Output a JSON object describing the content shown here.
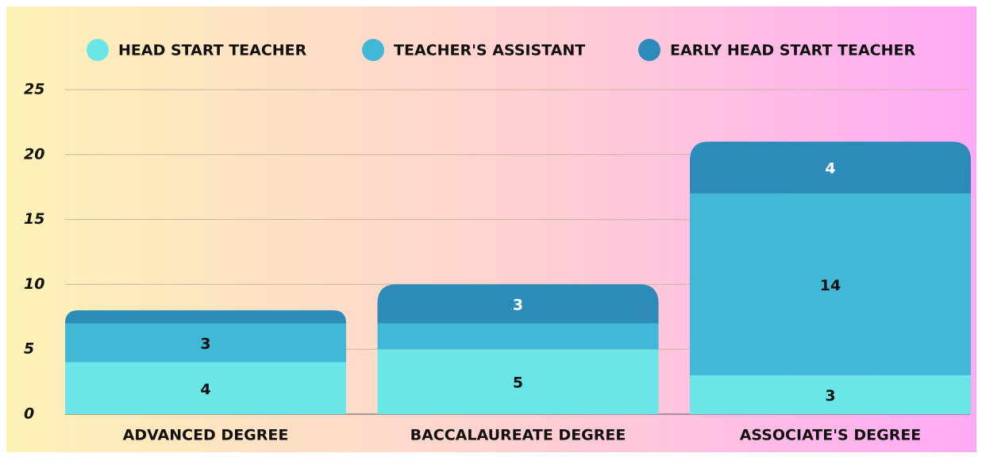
{
  "chart_data": {
    "type": "stacked_bar",
    "categories": [
      "ADVANCED DEGREE",
      "BACCALAUREATE DEGREE",
      "ASSOCIATE'S DEGREE"
    ],
    "series": [
      {
        "name": "HEAD START TEACHER",
        "color": "#6ce5e8",
        "values": [
          4,
          5,
          3
        ]
      },
      {
        "name": "TEACHER'S ASSISTANT",
        "color": "#41b8d5",
        "values": [
          3,
          2,
          14
        ]
      },
      {
        "name": "EARLY HEAD START TEACHER",
        "color": "#2d8bba",
        "values": [
          1,
          3,
          4
        ]
      }
    ],
    "ylim": [
      0,
      25
    ],
    "yticks": [
      0,
      5,
      10,
      15,
      20,
      25
    ],
    "grid": true,
    "legend": "top"
  }
}
